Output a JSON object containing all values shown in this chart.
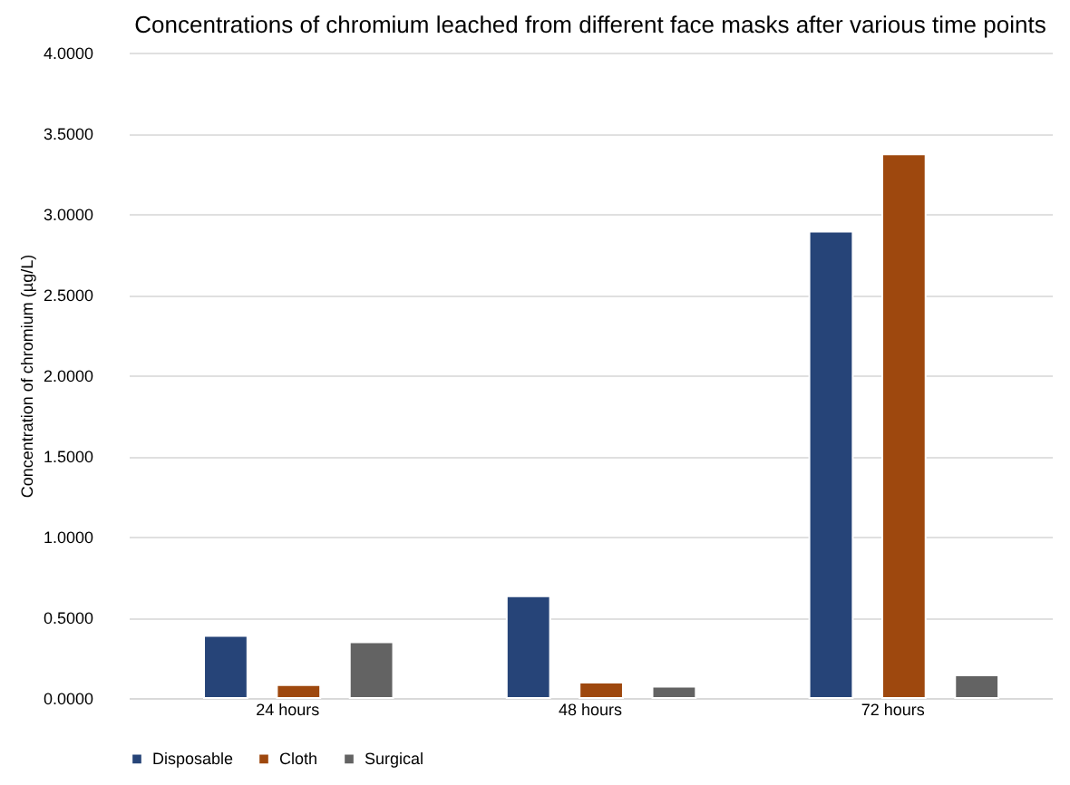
{
  "chart_data": {
    "type": "bar",
    "title": "Concentrations of chromium leached from different face masks after various time points",
    "ylabel": "Concentration of chromium (µg/L)",
    "categories": [
      "24 hours",
      "48 hours",
      "72 hours"
    ],
    "series": [
      {
        "name": "Disposable",
        "color": "#264478",
        "values": [
          0.385,
          0.63,
          2.89
        ]
      },
      {
        "name": "Cloth",
        "color": "#9e480e",
        "values": [
          0.08,
          0.095,
          3.37
        ]
      },
      {
        "name": "Surgical",
        "color": "#636363",
        "values": [
          0.345,
          0.07,
          0.14
        ]
      }
    ],
    "ylim": [
      0,
      4
    ],
    "yticks": [
      {
        "value": 0,
        "label": "0.0000"
      },
      {
        "value": 0.5,
        "label": "0.5000"
      },
      {
        "value": 1,
        "label": "1.0000"
      },
      {
        "value": 1.5,
        "label": "1.5000"
      },
      {
        "value": 2,
        "label": "2.0000"
      },
      {
        "value": 2.5,
        "label": "2.5000"
      },
      {
        "value": 3,
        "label": "3.0000"
      },
      {
        "value": 3.5,
        "label": "3.5000"
      },
      {
        "value": 4,
        "label": "4.0000"
      }
    ],
    "grid": "y",
    "legend": "bottom"
  }
}
